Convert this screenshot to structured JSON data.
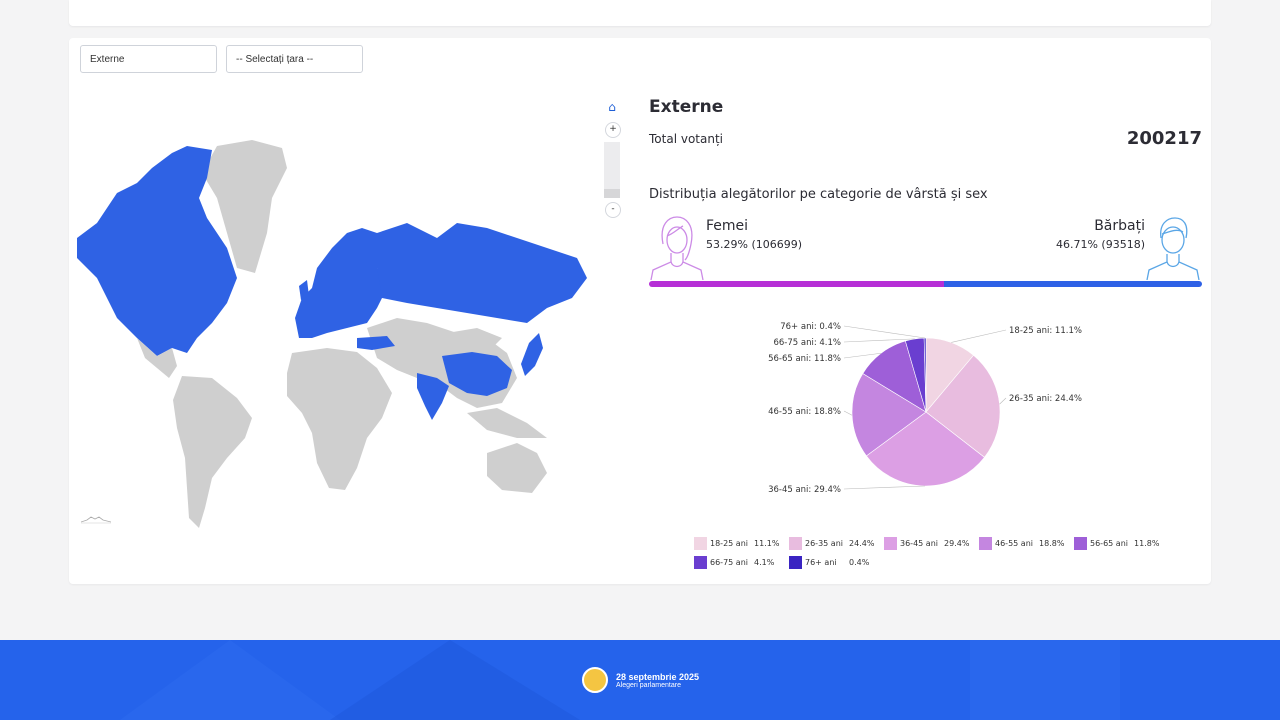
{
  "filters": {
    "region_value": "Externe",
    "country_placeholder": "-- Selectați țara --"
  },
  "summary": {
    "title": "Externe",
    "total_label": "Total votanți",
    "total_value": "200217",
    "distribution_title": "Distribuția alegătorilor pe categorie de vârstă și sex"
  },
  "gender": {
    "female_label": "Femei",
    "female_stat": "53.29% (106699)",
    "female_share": 53.29,
    "male_label": "Bărbați",
    "male_stat": "46.71% (93518)",
    "male_share": 46.71,
    "female_color": "#b62fd6",
    "male_color": "#2e61e6"
  },
  "chart_data": {
    "type": "pie",
    "slices": [
      {
        "label": "18-25 ani",
        "value": 11.1,
        "color": "#f1d5e3"
      },
      {
        "label": "26-35 ani",
        "value": 24.4,
        "color": "#e8bcdf"
      },
      {
        "label": "36-45 ani",
        "value": 29.4,
        "color": "#dc9fe4"
      },
      {
        "label": "46-55 ani",
        "value": 18.8,
        "color": "#c486e0"
      },
      {
        "label": "56-65 ani",
        "value": 11.8,
        "color": "#9e5fd8"
      },
      {
        "label": "66-75 ani",
        "value": 4.1,
        "color": "#6a3ed0"
      },
      {
        "label": "76+ ani",
        "value": 0.4,
        "color": "#3a24c2"
      }
    ],
    "slice_labels": [
      "18-25 ani: 11.1%",
      "26-35 ani: 24.4%",
      "36-45 ani: 29.4%",
      "46-55 ani: 18.8%",
      "56-65 ani: 11.8%",
      "66-75 ani: 4.1%",
      "76+ ani: 0.4%"
    ],
    "legend": [
      {
        "label": "18-25 ani",
        "value": "11.1%"
      },
      {
        "label": "26-35 ani",
        "value": "24.4%"
      },
      {
        "label": "36-45 ani",
        "value": "29.4%"
      },
      {
        "label": "46-55 ani",
        "value": "18.8%"
      },
      {
        "label": "56-65 ani",
        "value": "11.8%"
      },
      {
        "label": "66-75 ani",
        "value": "4.1%"
      },
      {
        "label": "76+ ani",
        "value": "0.4%"
      }
    ]
  },
  "map": {
    "highlight_color": "#2f62e4",
    "base_color": "#cfcfcf",
    "zoom_in": "+",
    "zoom_out": "-"
  },
  "footer": {
    "date": "28 septembrie 2025",
    "subtitle": "Alegeri parlamentare"
  },
  "icons": {
    "home": "home-icon",
    "female_avatar": "female-avatar-icon",
    "male_avatar": "male-avatar-icon",
    "emblem": "emblem-icon"
  }
}
